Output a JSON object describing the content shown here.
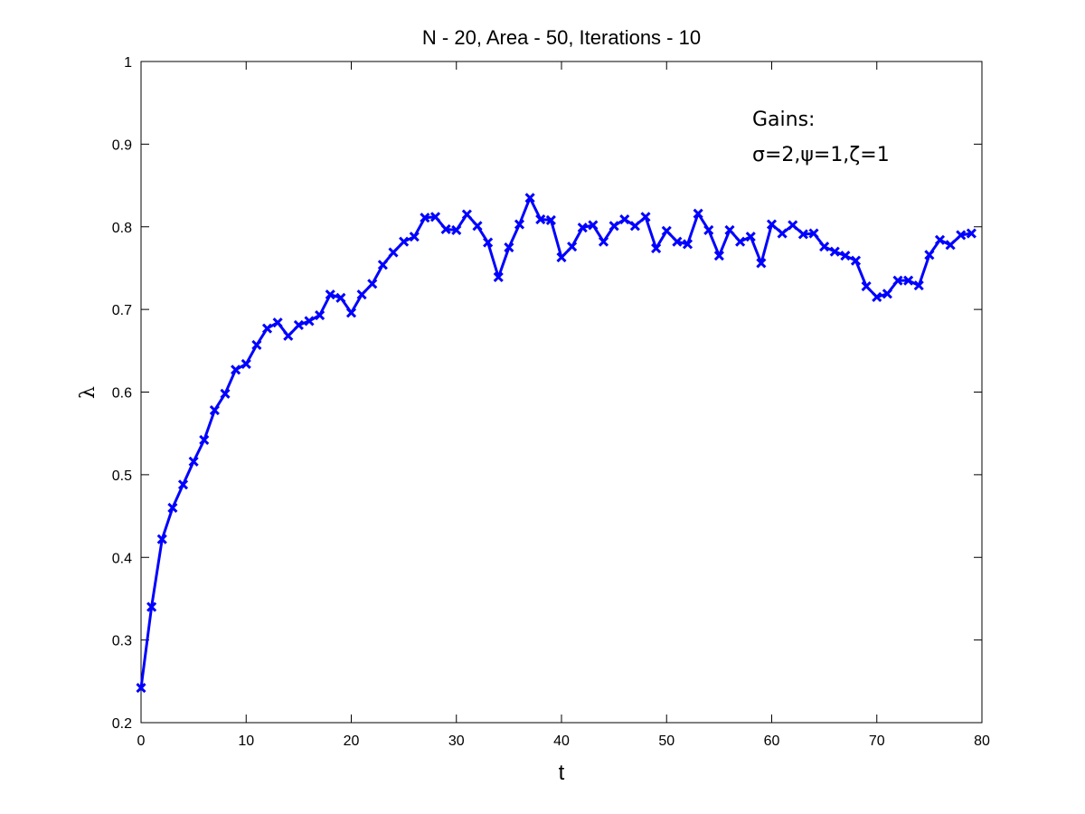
{
  "chart_data": {
    "type": "line",
    "title": "N - 20, Area - 50, Iterations - 10",
    "xlabel": "t",
    "ylabel": "λ",
    "xlim": [
      0,
      80
    ],
    "ylim": [
      0.2,
      1
    ],
    "xticks": [
      0,
      10,
      20,
      30,
      40,
      50,
      60,
      70,
      80
    ],
    "yticks": [
      0.2,
      0.3,
      0.4,
      0.5,
      0.6,
      0.7,
      0.8,
      0.9,
      1
    ],
    "ytick_labels": [
      "0.2",
      "0.3",
      "0.4",
      "0.5",
      "0.6",
      "0.7",
      "0.8",
      "0.9",
      "1"
    ],
    "grid": false,
    "marker": "x",
    "color": "#0000FF",
    "annotation": {
      "line1": "Gains:",
      "line2": "σ=2,ψ=1,ζ=1"
    },
    "series": [
      {
        "x": [
          0,
          1,
          2,
          3,
          4,
          5,
          6,
          7,
          8,
          9,
          10,
          11,
          12,
          13,
          14,
          15,
          16,
          17,
          18,
          19,
          20,
          21,
          22,
          23,
          24,
          25,
          26,
          27,
          28,
          29,
          30,
          31,
          32,
          33,
          34,
          35,
          36,
          37,
          38,
          39,
          40,
          41,
          42,
          43,
          44,
          45,
          46,
          47,
          48,
          49,
          50,
          51,
          52,
          53,
          54,
          55,
          56,
          57,
          58,
          59,
          60,
          61,
          62,
          63,
          64,
          65,
          66,
          67,
          68,
          69,
          70,
          71,
          72,
          73,
          74,
          75,
          76,
          77,
          78,
          79
        ],
        "values": [
          0.242,
          0.34,
          0.422,
          0.46,
          0.488,
          0.516,
          0.542,
          0.578,
          0.598,
          0.627,
          0.634,
          0.657,
          0.677,
          0.684,
          0.668,
          0.681,
          0.686,
          0.693,
          0.718,
          0.714,
          0.696,
          0.718,
          0.731,
          0.754,
          0.769,
          0.782,
          0.788,
          0.811,
          0.812,
          0.797,
          0.796,
          0.815,
          0.801,
          0.781,
          0.739,
          0.775,
          0.803,
          0.835,
          0.809,
          0.808,
          0.763,
          0.776,
          0.799,
          0.802,
          0.782,
          0.801,
          0.809,
          0.801,
          0.812,
          0.774,
          0.795,
          0.782,
          0.779,
          0.816,
          0.796,
          0.765,
          0.796,
          0.782,
          0.788,
          0.756,
          0.803,
          0.792,
          0.802,
          0.791,
          0.792,
          0.776,
          0.77,
          0.765,
          0.759,
          0.728,
          0.715,
          0.719,
          0.735,
          0.735,
          0.729,
          0.766,
          0.784,
          0.778,
          0.79,
          0.792
        ]
      }
    ]
  }
}
